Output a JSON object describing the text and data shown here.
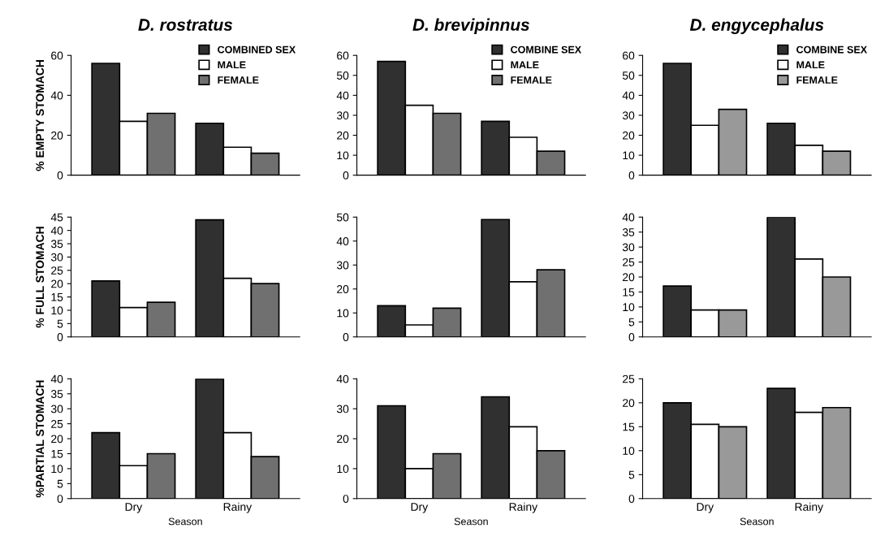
{
  "chart_data": [
    {
      "type": "bar",
      "title": "D. rostratus",
      "ylabel": "% EMPTY STOMACH",
      "categories": [
        "Dry",
        "Rainy"
      ],
      "tick_labels": "y",
      "legend": "top right",
      "ylim": [
        0,
        60
      ],
      "yticks": [
        0,
        20,
        40,
        60
      ],
      "series": [
        {
          "name": "COMBINED SEX",
          "color": "#303030",
          "values": [
            56,
            26
          ]
        },
        {
          "name": "MALE",
          "color": "#ffffff",
          "values": [
            27,
            14
          ]
        },
        {
          "name": "FEMALE",
          "color": "#707070",
          "values": [
            31,
            11
          ]
        }
      ]
    },
    {
      "type": "bar",
      "title": "D. brevipinnus",
      "categories": [
        "Dry",
        "Rainy"
      ],
      "tick_labels": "y",
      "legend": "top right",
      "ylim": [
        0,
        60
      ],
      "yticks": [
        0,
        10,
        20,
        30,
        40,
        50,
        60
      ],
      "series": [
        {
          "name": "COMBINE SEX",
          "color": "#303030",
          "values": [
            57,
            27
          ]
        },
        {
          "name": "MALE",
          "color": "#ffffff",
          "values": [
            35,
            19
          ]
        },
        {
          "name": "FEMALE",
          "color": "#707070",
          "values": [
            31,
            12
          ]
        }
      ]
    },
    {
      "type": "bar",
      "title": "D. engycephalus",
      "categories": [
        "Dry",
        "Rainy"
      ],
      "tick_labels": "y",
      "legend": "top right",
      "ylim": [
        0,
        60
      ],
      "yticks": [
        0,
        10,
        20,
        30,
        40,
        50,
        60
      ],
      "series": [
        {
          "name": "COMBINE SEX",
          "color": "#303030",
          "values": [
            56,
            26
          ]
        },
        {
          "name": "MALE",
          "color": "#ffffff",
          "values": [
            25,
            15
          ]
        },
        {
          "name": "FEMALE",
          "color": "#999999",
          "values": [
            33,
            12
          ]
        }
      ]
    },
    {
      "type": "bar",
      "ylabel": "% FULL STOMACH",
      "categories": [
        "Dry",
        "Rainy"
      ],
      "tick_labels": "y",
      "ylim": [
        0,
        45
      ],
      "yticks": [
        0,
        5,
        10,
        15,
        20,
        25,
        30,
        35,
        40,
        45
      ],
      "series": [
        {
          "color": "#303030",
          "values": [
            21,
            44
          ]
        },
        {
          "color": "#ffffff",
          "values": [
            11,
            22
          ]
        },
        {
          "color": "#707070",
          "values": [
            13,
            20
          ]
        }
      ]
    },
    {
      "type": "bar",
      "categories": [
        "Dry",
        "Rainy"
      ],
      "tick_labels": "y",
      "ylim": [
        0,
        50
      ],
      "yticks": [
        0,
        10,
        20,
        30,
        40,
        50
      ],
      "series": [
        {
          "color": "#303030",
          "values": [
            13,
            49
          ]
        },
        {
          "color": "#ffffff",
          "values": [
            5,
            23
          ]
        },
        {
          "color": "#707070",
          "values": [
            12,
            28
          ]
        }
      ]
    },
    {
      "type": "bar",
      "categories": [
        "Dry",
        "Rainy"
      ],
      "tick_labels": "y",
      "ylim": [
        0,
        40
      ],
      "yticks": [
        0,
        5,
        10,
        15,
        20,
        25,
        30,
        35,
        40
      ],
      "series": [
        {
          "color": "#303030",
          "values": [
            17,
            40
          ]
        },
        {
          "color": "#ffffff",
          "values": [
            9,
            26
          ]
        },
        {
          "color": "#999999",
          "values": [
            9,
            20
          ]
        }
      ]
    },
    {
      "type": "bar",
      "ylabel": "%PARTIAL STOMACH",
      "xlabel": "Season",
      "categories": [
        "Dry",
        "Rainy"
      ],
      "ylim": [
        0,
        40
      ],
      "yticks": [
        0,
        5,
        10,
        15,
        20,
        25,
        30,
        35,
        40
      ],
      "series": [
        {
          "color": "#303030",
          "values": [
            22,
            40
          ]
        },
        {
          "color": "#ffffff",
          "values": [
            11,
            22
          ]
        },
        {
          "color": "#707070",
          "values": [
            15,
            14
          ]
        }
      ]
    },
    {
      "type": "bar",
      "xlabel": "Season",
      "categories": [
        "Dry",
        "Rainy"
      ],
      "ylim": [
        0,
        40
      ],
      "yticks": [
        0,
        10,
        20,
        30,
        40
      ],
      "series": [
        {
          "color": "#303030",
          "values": [
            31,
            34
          ]
        },
        {
          "color": "#ffffff",
          "values": [
            10,
            24
          ]
        },
        {
          "color": "#707070",
          "values": [
            15,
            16
          ]
        }
      ]
    },
    {
      "type": "bar",
      "xlabel": "Season",
      "categories": [
        "Dry",
        "Rainy"
      ],
      "ylim": [
        0,
        25
      ],
      "yticks": [
        0,
        5,
        10,
        15,
        20,
        25
      ],
      "series": [
        {
          "color": "#303030",
          "values": [
            20,
            23
          ]
        },
        {
          "color": "#ffffff",
          "values": [
            15.5,
            18
          ]
        },
        {
          "color": "#999999",
          "values": [
            15,
            19
          ]
        }
      ]
    }
  ]
}
